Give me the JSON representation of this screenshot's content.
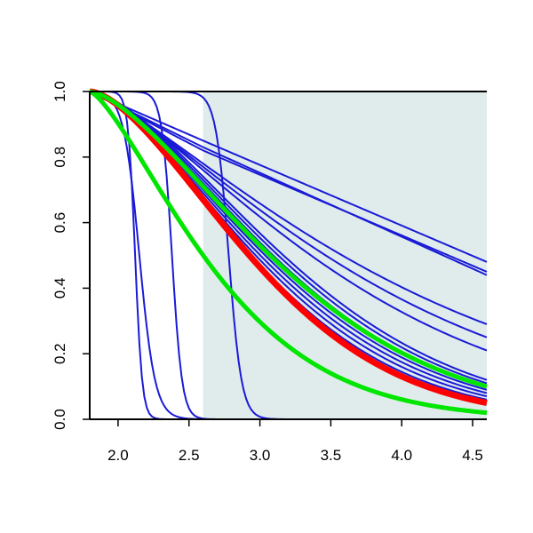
{
  "chart_data": {
    "type": "line",
    "title": "",
    "xlabel": "",
    "ylabel": "",
    "xlim": [
      1.8,
      4.6
    ],
    "ylim": [
      0.0,
      1.0
    ],
    "x_ticks": [
      2.0,
      2.5,
      3.0,
      3.5,
      4.0,
      4.5
    ],
    "x_tick_labels": [
      "2.0",
      "2.5",
      "3.0",
      "3.5",
      "4.0",
      "4.5"
    ],
    "y_ticks": [
      0.0,
      0.2,
      0.4,
      0.6,
      0.8,
      1.0
    ],
    "y_tick_labels": [
      "0.0",
      "0.2",
      "0.4",
      "0.6",
      "0.8",
      "1.0"
    ],
    "grid": false,
    "shaded_region": {
      "x_from": 2.6,
      "x_to": 4.6,
      "color": "#e0ecec"
    },
    "colors": {
      "blue": "#1a1ad6",
      "red": "#ff0000",
      "green": "#00e600",
      "axis": "#000000"
    },
    "series": [
      {
        "color": "blue",
        "kind": "sigmoid",
        "center": 2.15,
        "k": 18,
        "values_at_x": [
          [
            1.8,
            1.0
          ],
          [
            2.15,
            0.5
          ],
          [
            2.5,
            0.0
          ]
        ]
      },
      {
        "color": "blue",
        "kind": "sigmoid",
        "center": 2.12,
        "k": 40,
        "values_at_x": [
          [
            1.8,
            1.0
          ],
          [
            2.12,
            0.5
          ],
          [
            2.3,
            0.0
          ]
        ]
      },
      {
        "color": "blue",
        "kind": "sigmoid",
        "center": 2.38,
        "k": 28,
        "values_at_x": [
          [
            1.8,
            1.0
          ],
          [
            2.38,
            0.5
          ],
          [
            2.7,
            0.0
          ]
        ]
      },
      {
        "color": "blue",
        "kind": "sigmoid",
        "center": 2.78,
        "k": 22,
        "values_at_x": [
          [
            1.8,
            1.0
          ],
          [
            2.78,
            0.5
          ],
          [
            3.2,
            0.0
          ]
        ]
      },
      {
        "color": "blue",
        "kind": "linear",
        "values_at_x": [
          [
            1.8,
            1.0
          ],
          [
            2.6,
            0.85
          ],
          [
            4.6,
            0.48
          ]
        ]
      },
      {
        "color": "blue",
        "kind": "linear",
        "values_at_x": [
          [
            1.8,
            1.0
          ],
          [
            2.6,
            0.83
          ],
          [
            4.6,
            0.44
          ]
        ]
      },
      {
        "color": "blue",
        "kind": "linear",
        "values_at_x": [
          [
            1.8,
            1.0
          ],
          [
            2.6,
            0.82
          ],
          [
            4.6,
            0.45
          ]
        ]
      },
      {
        "color": "blue",
        "kind": "curve",
        "values_at_x": [
          [
            1.8,
            1.0
          ],
          [
            2.6,
            0.78
          ],
          [
            4.6,
            0.29
          ]
        ]
      },
      {
        "color": "blue",
        "kind": "curve",
        "values_at_x": [
          [
            1.8,
            1.0
          ],
          [
            2.6,
            0.77
          ],
          [
            4.6,
            0.25
          ]
        ]
      },
      {
        "color": "blue",
        "kind": "curve",
        "values_at_x": [
          [
            1.8,
            1.0
          ],
          [
            2.6,
            0.76
          ],
          [
            4.6,
            0.21
          ]
        ]
      },
      {
        "color": "blue",
        "kind": "curve",
        "values_at_x": [
          [
            1.8,
            1.0
          ],
          [
            2.6,
            0.74
          ],
          [
            4.6,
            0.12
          ]
        ]
      },
      {
        "color": "blue",
        "kind": "curve",
        "values_at_x": [
          [
            1.8,
            1.0
          ],
          [
            2.6,
            0.73
          ],
          [
            4.6,
            0.11
          ]
        ]
      },
      {
        "color": "blue",
        "kind": "curve",
        "values_at_x": [
          [
            1.8,
            1.0
          ],
          [
            2.6,
            0.72
          ],
          [
            4.6,
            0.1
          ]
        ]
      },
      {
        "color": "blue",
        "kind": "curve",
        "values_at_x": [
          [
            1.8,
            1.0
          ],
          [
            2.6,
            0.7
          ],
          [
            4.6,
            0.09
          ]
        ]
      },
      {
        "color": "blue",
        "kind": "curve",
        "values_at_x": [
          [
            1.8,
            1.0
          ],
          [
            2.6,
            0.69
          ],
          [
            4.6,
            0.08
          ]
        ]
      },
      {
        "color": "blue",
        "kind": "curve",
        "values_at_x": [
          [
            1.8,
            1.0
          ],
          [
            2.6,
            0.68
          ],
          [
            4.6,
            0.07
          ]
        ]
      },
      {
        "color": "blue",
        "kind": "curve",
        "values_at_x": [
          [
            1.8,
            1.0
          ],
          [
            2.6,
            0.67
          ],
          [
            4.6,
            0.06
          ]
        ]
      },
      {
        "color": "red",
        "kind": "curve",
        "values_at_x": [
          [
            1.8,
            1.0
          ],
          [
            2.6,
            0.67
          ],
          [
            4.6,
            0.05
          ]
        ]
      },
      {
        "color": "green",
        "kind": "curve",
        "values_at_x": [
          [
            1.8,
            1.0
          ],
          [
            2.6,
            0.71
          ],
          [
            4.6,
            0.1
          ]
        ]
      },
      {
        "color": "green",
        "kind": "curve",
        "values_at_x": [
          [
            1.8,
            1.0
          ],
          [
            2.6,
            0.5
          ],
          [
            4.6,
            0.02
          ]
        ]
      }
    ]
  }
}
